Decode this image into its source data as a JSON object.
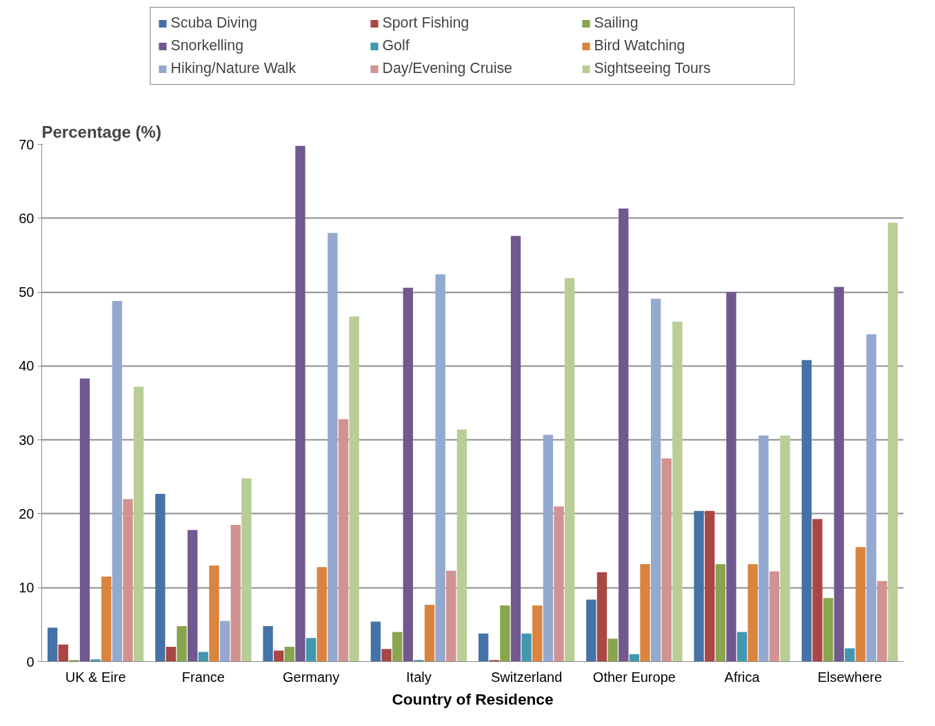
{
  "chart_data": {
    "type": "bar",
    "xlabel": "Country of Residence",
    "ylabel": "Percentage (%)",
    "categories": [
      "UK & Eire",
      "France",
      "Germany",
      "Italy",
      "Switzerland",
      "Other Europe",
      "Africa",
      "Elsewhere"
    ],
    "series": [
      {
        "name": "Scuba Diving",
        "color": "#4572a7",
        "values": [
          4.6,
          22.7,
          4.8,
          5.4,
          3.8,
          8.4,
          20.4,
          40.8
        ]
      },
      {
        "name": "Sport Fishing",
        "color": "#aa4643",
        "values": [
          2.3,
          2.0,
          1.5,
          1.7,
          0.2,
          12.1,
          20.4,
          19.3
        ]
      },
      {
        "name": "Sailing",
        "color": "#89a54e",
        "values": [
          0.2,
          4.8,
          2.0,
          4.0,
          7.6,
          3.1,
          13.2,
          8.6
        ]
      },
      {
        "name": "Snorkelling",
        "color": "#71588f",
        "values": [
          38.3,
          17.8,
          69.8,
          50.6,
          57.6,
          61.3,
          50.0,
          50.7
        ]
      },
      {
        "name": "Golf",
        "color": "#4198af",
        "values": [
          0.3,
          1.3,
          3.2,
          0.2,
          3.8,
          1.0,
          4.0,
          1.8
        ]
      },
      {
        "name": "Bird Watching",
        "color": "#db843d",
        "values": [
          11.5,
          13.0,
          12.8,
          7.7,
          7.6,
          13.2,
          13.2,
          15.5
        ]
      },
      {
        "name": "Hiking/Nature Walk",
        "color": "#93a9cf",
        "values": [
          48.8,
          5.5,
          58.0,
          52.4,
          30.7,
          49.1,
          30.6,
          44.3
        ]
      },
      {
        "name": "Day/Evening Cruise",
        "color": "#d19392",
        "values": [
          22.0,
          18.5,
          32.8,
          12.3,
          21.0,
          27.5,
          12.2,
          10.9
        ]
      },
      {
        "name": "Sightseeing Tours",
        "color": "#b9cd96",
        "values": [
          37.2,
          24.8,
          46.7,
          31.4,
          51.9,
          46.0,
          30.6,
          59.4
        ]
      }
    ],
    "ylim": [
      0,
      70
    ],
    "yticks": [
      0,
      10,
      20,
      30,
      40,
      50,
      60,
      70
    ],
    "grid": "y",
    "legend": "top"
  }
}
